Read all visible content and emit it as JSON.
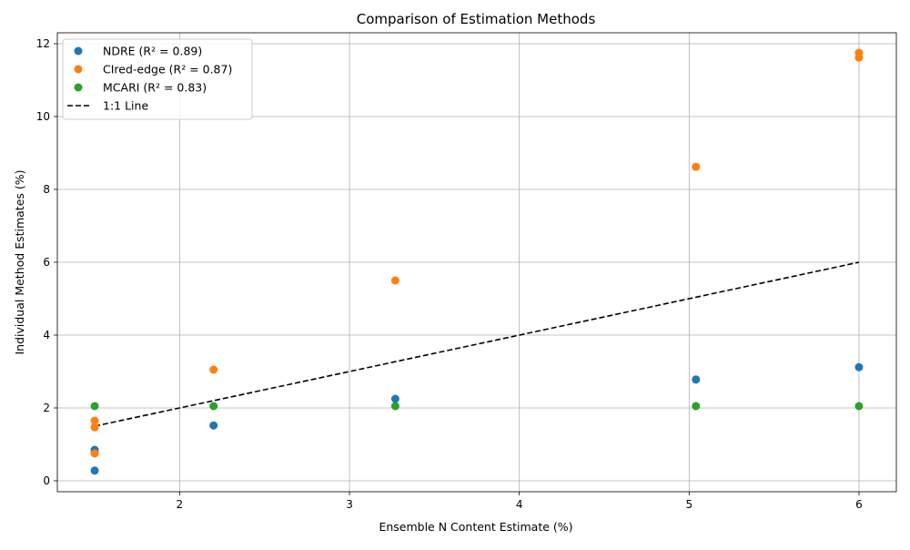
{
  "chart_data": {
    "type": "scatter",
    "title": "Comparison of Estimation Methods",
    "xlabel": "Ensemble N Content Estimate (%)",
    "ylabel": "Individual Method Estimates (%)",
    "xlim": [
      1.28,
      6.22
    ],
    "ylim": [
      -0.3,
      12.3
    ],
    "xticks": [
      2,
      3,
      4,
      5,
      6
    ],
    "yticks": [
      0,
      2,
      4,
      6,
      8,
      10,
      12
    ],
    "grid": true,
    "legend_position": "top-left",
    "series": [
      {
        "name": "NDRE (R² = 0.89)",
        "color": "#1f77b4",
        "points": [
          {
            "x": 1.5,
            "y": 0.28
          },
          {
            "x": 1.5,
            "y": 0.78
          },
          {
            "x": 1.5,
            "y": 0.85
          },
          {
            "x": 2.2,
            "y": 1.52
          },
          {
            "x": 3.27,
            "y": 2.25
          },
          {
            "x": 5.04,
            "y": 2.78
          },
          {
            "x": 6.0,
            "y": 3.12
          }
        ]
      },
      {
        "name": "CIred-edge (R² = 0.87)",
        "color": "#ff7f0e",
        "points": [
          {
            "x": 1.5,
            "y": 0.75
          },
          {
            "x": 1.5,
            "y": 1.47
          },
          {
            "x": 1.5,
            "y": 1.65
          },
          {
            "x": 2.2,
            "y": 3.05
          },
          {
            "x": 3.27,
            "y": 5.5
          },
          {
            "x": 5.04,
            "y": 8.62
          },
          {
            "x": 6.0,
            "y": 11.62
          },
          {
            "x": 6.0,
            "y": 11.75
          }
        ]
      },
      {
        "name": "MCARI (R² = 0.83)",
        "color": "#2ca02c",
        "points": [
          {
            "x": 1.5,
            "y": 2.05
          },
          {
            "x": 2.2,
            "y": 2.05
          },
          {
            "x": 3.27,
            "y": 2.05
          },
          {
            "x": 5.04,
            "y": 2.05
          },
          {
            "x": 6.0,
            "y": 2.05
          }
        ]
      }
    ],
    "reference_line": {
      "name": "1:1 Line",
      "color": "#000000",
      "style": "dashed",
      "x": [
        1.5,
        6.0
      ],
      "y": [
        1.5,
        6.0
      ]
    }
  }
}
